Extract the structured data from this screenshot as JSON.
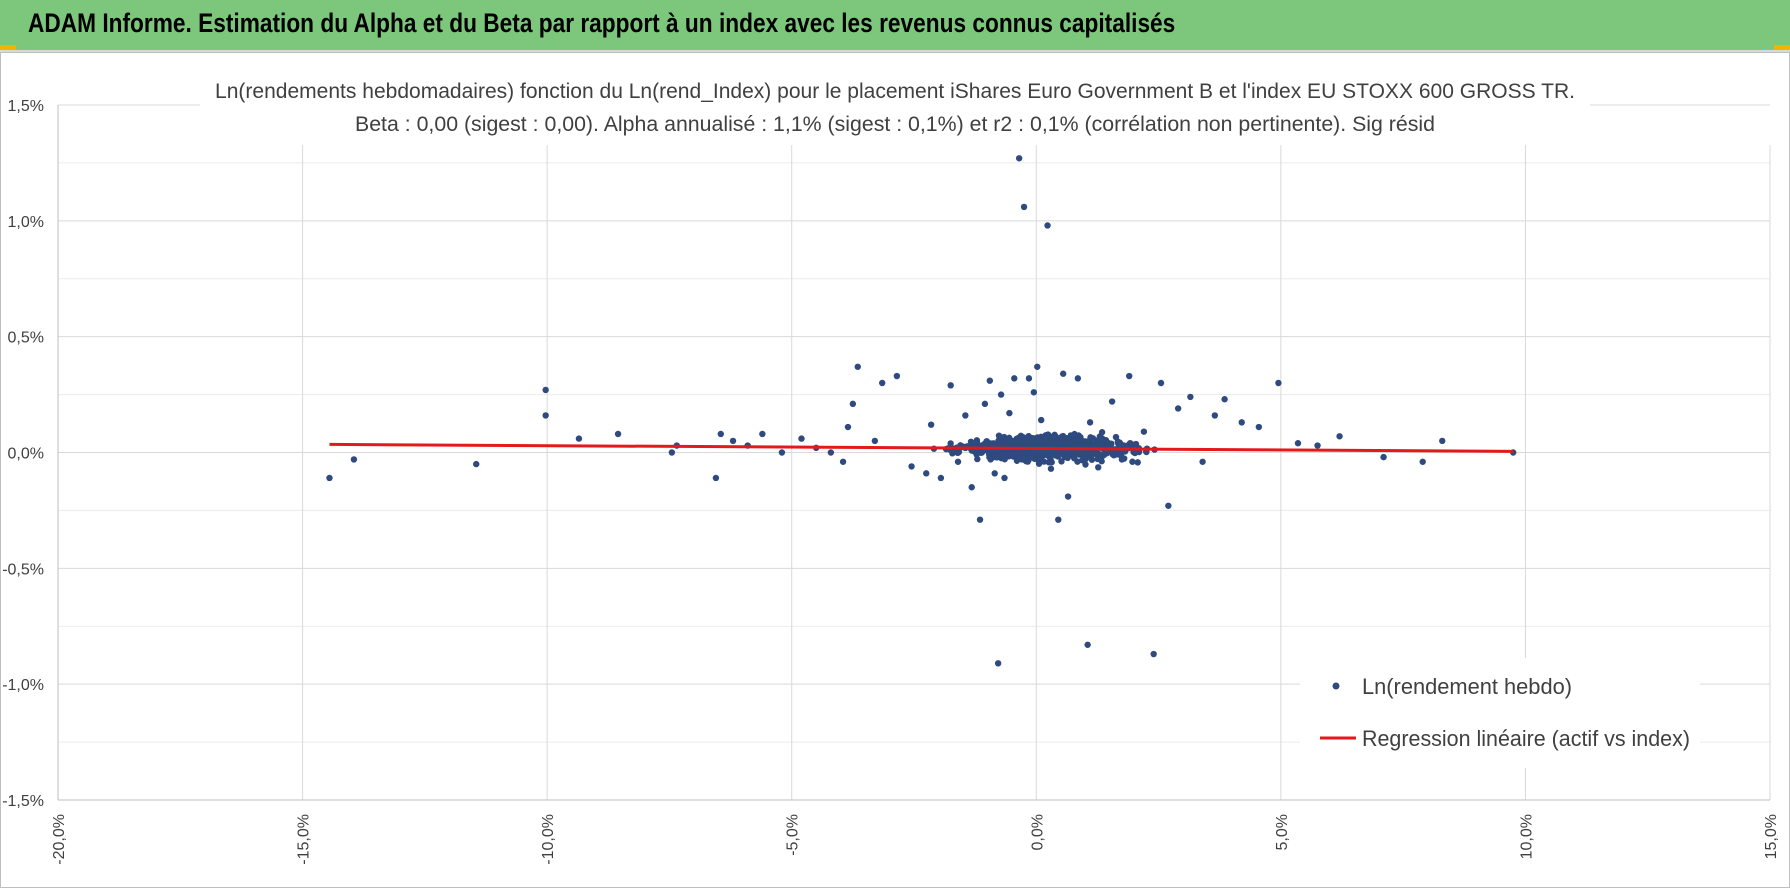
{
  "banner": {
    "title": "ADAM Informe. Estimation du Alpha et du Beta par rapport à un index avec les revenus connus capitalisés",
    "color": "#7dc77c",
    "accent": "#f2b400"
  },
  "chart_data": {
    "type": "scatter",
    "title_line1": "Ln(rendements hebdomadaires) fonction du Ln(rend_Index) pour le placement iShares Euro Government B et l'index EU STOXX 600 GROSS TR.",
    "title_line2": "Beta : 0,00 (sigest : 0,00). Alpha annualisé : 1,1% (sigest : 0,1%) et r2 : 0,1% (corrélation non pertinente). Sig résid",
    "xlim": [
      -0.2,
      0.15
    ],
    "ylim": [
      -0.015,
      0.015
    ],
    "x_ticks": [
      {
        "value": -0.2,
        "label": "-20,0%"
      },
      {
        "value": -0.15,
        "label": "-15,0%"
      },
      {
        "value": -0.1,
        "label": "-10,0%"
      },
      {
        "value": -0.05,
        "label": "-5,0%"
      },
      {
        "value": 0.0,
        "label": "0,0%"
      },
      {
        "value": 0.05,
        "label": "5,0%"
      },
      {
        "value": 0.1,
        "label": "10,0%"
      },
      {
        "value": 0.15,
        "label": "15,0%"
      }
    ],
    "y_ticks": [
      {
        "value": 0.015,
        "label": "1,5%"
      },
      {
        "value": 0.01,
        "label": "1,0%"
      },
      {
        "value": 0.005,
        "label": "0,5%"
      },
      {
        "value": 0.0,
        "label": "0,0%"
      },
      {
        "value": -0.005,
        "label": "-0,5%"
      },
      {
        "value": -0.01,
        "label": "-1,0%"
      },
      {
        "value": -0.015,
        "label": "-1,5%"
      }
    ],
    "grid": true,
    "legend_position": "bottom-right",
    "series": [
      {
        "name": "Ln(rendement hebdo)",
        "kind": "scatter",
        "color": "#2e4a7f",
        "points": [
          [
            -0.1445,
            -0.0011
          ],
          [
            -0.1395,
            -0.0003
          ],
          [
            -0.1145,
            -0.0005
          ],
          [
            -0.1003,
            0.0027
          ],
          [
            -0.1003,
            0.0016
          ],
          [
            -0.0935,
            0.0006
          ],
          [
            -0.0855,
            0.0008
          ],
          [
            -0.0745,
            0.0
          ],
          [
            -0.0735,
            0.0003
          ],
          [
            -0.0655,
            -0.0011
          ],
          [
            -0.0645,
            0.0008
          ],
          [
            -0.062,
            0.0005
          ],
          [
            -0.059,
            0.0003
          ],
          [
            -0.056,
            0.0008
          ],
          [
            -0.052,
            0.0
          ],
          [
            -0.048,
            0.0006
          ],
          [
            -0.045,
            0.0002
          ],
          [
            -0.042,
            0.0
          ],
          [
            -0.0395,
            -0.0004
          ],
          [
            -0.0385,
            0.0011
          ],
          [
            -0.0375,
            0.0021
          ],
          [
            -0.0365,
            0.0037
          ],
          [
            -0.033,
            0.0005
          ],
          [
            -0.0315,
            0.003
          ],
          [
            -0.0285,
            0.0033
          ],
          [
            -0.0255,
            -0.0006
          ],
          [
            -0.0225,
            -0.0009
          ],
          [
            -0.0215,
            0.0012
          ],
          [
            -0.0195,
            -0.0011
          ],
          [
            -0.0175,
            0.0029
          ],
          [
            -0.016,
            -0.0004
          ],
          [
            -0.0145,
            0.0016
          ],
          [
            -0.0132,
            -0.0015
          ],
          [
            -0.0115,
            -0.0029
          ],
          [
            -0.0105,
            0.0021
          ],
          [
            -0.0095,
            0.0031
          ],
          [
            -0.0085,
            -0.0009
          ],
          [
            -0.0078,
            -0.0091
          ],
          [
            -0.0072,
            0.0025
          ],
          [
            -0.0065,
            -0.0011
          ],
          [
            -0.0055,
            0.0017
          ],
          [
            -0.0045,
            0.0032
          ],
          [
            -0.0035,
            0.0127
          ],
          [
            -0.0025,
            0.0106
          ],
          [
            -0.0015,
            0.0032
          ],
          [
            -0.0005,
            0.0026
          ],
          [
            0.0002,
            0.0037
          ],
          [
            0.001,
            0.0014
          ],
          [
            0.0023,
            0.0098
          ],
          [
            0.003,
            -0.0007
          ],
          [
            0.0045,
            -0.0029
          ],
          [
            0.0055,
            0.0034
          ],
          [
            0.0065,
            -0.0019
          ],
          [
            0.0085,
            0.0032
          ],
          [
            0.0105,
            -0.0083
          ],
          [
            0.011,
            0.0013
          ],
          [
            0.0135,
            0.0006
          ],
          [
            0.0155,
            0.0022
          ],
          [
            0.0175,
            -0.0003
          ],
          [
            0.019,
            0.0033
          ],
          [
            0.022,
            0.0009
          ],
          [
            0.024,
            -0.0087
          ],
          [
            0.0255,
            0.003
          ],
          [
            0.027,
            -0.0023
          ],
          [
            0.029,
            0.0019
          ],
          [
            0.0315,
            0.0024
          ],
          [
            0.034,
            -0.0004
          ],
          [
            0.0365,
            0.0016
          ],
          [
            0.0385,
            0.0023
          ],
          [
            0.042,
            0.0013
          ],
          [
            0.0455,
            0.0011
          ],
          [
            0.0495,
            0.003
          ],
          [
            0.0535,
            0.0004
          ],
          [
            0.0575,
            0.0003
          ],
          [
            0.062,
            0.0007
          ],
          [
            0.071,
            -0.0002
          ],
          [
            0.079,
            -0.0004
          ],
          [
            0.083,
            0.0005
          ],
          [
            0.0975,
            0.0
          ]
        ]
      },
      {
        "name": "Regression linéaire (actif vs index)",
        "kind": "line",
        "color": "#e31a1c",
        "x": [
          -0.1445,
          0.0975
        ],
        "y": [
          0.00035,
          5e-05
        ]
      }
    ]
  }
}
